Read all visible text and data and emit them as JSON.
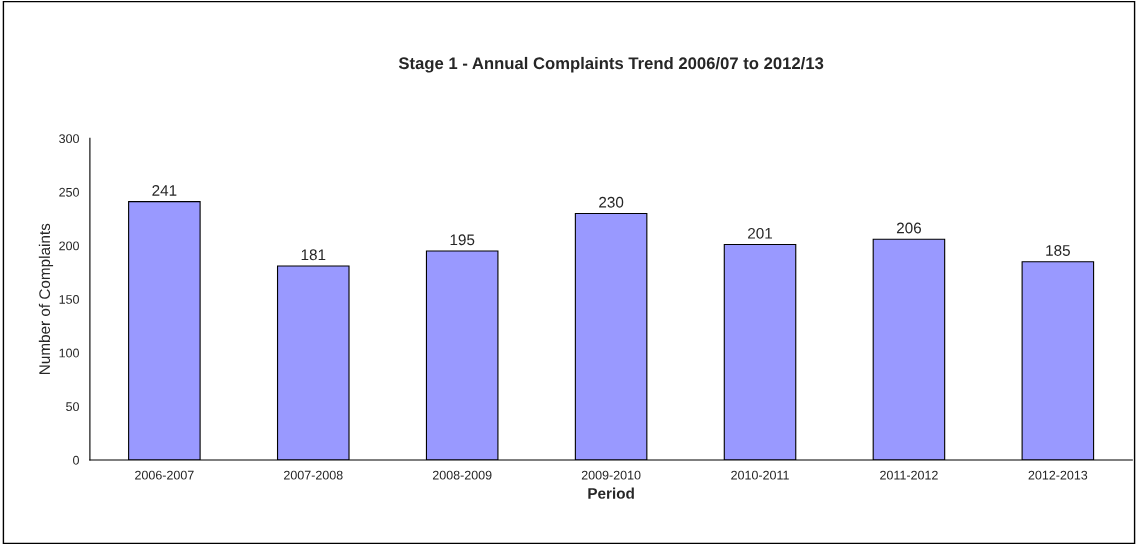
{
  "chart_data": {
    "type": "bar",
    "title": "Stage 1 - Annual Complaints Trend 2006/07 to 2012/13",
    "xlabel": "Period",
    "ylabel": "Number of Complaints",
    "categories": [
      "2006-2007",
      "2007-2008",
      "2008-2009",
      "2009-2010",
      "2010-2011",
      "2011-2012",
      "2012-2013"
    ],
    "values": [
      241,
      181,
      195,
      230,
      201,
      206,
      185
    ],
    "color": "#9999ff",
    "ylim": [
      0,
      300
    ],
    "yticks": [
      0,
      50,
      100,
      150,
      200,
      250,
      300
    ],
    "grid": false,
    "legend": false,
    "data_labels": true
  }
}
